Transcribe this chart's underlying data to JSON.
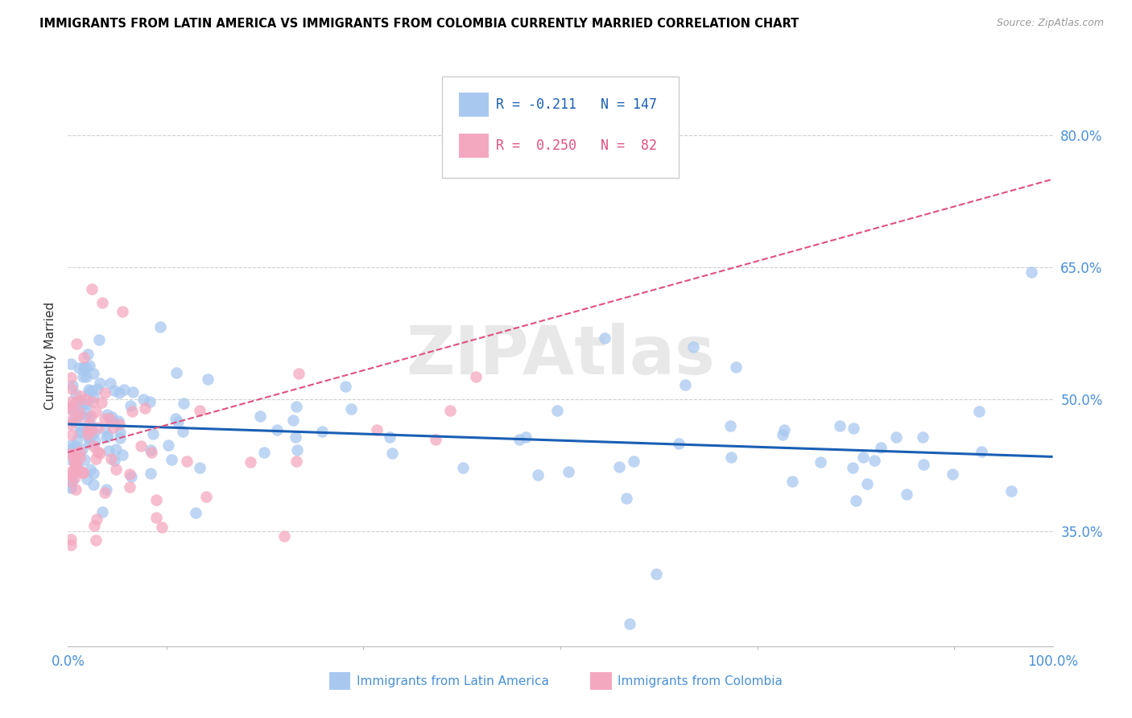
{
  "title": "IMMIGRANTS FROM LATIN AMERICA VS IMMIGRANTS FROM COLOMBIA CURRENTLY MARRIED CORRELATION CHART",
  "source": "Source: ZipAtlas.com",
  "ylabel": "Currently Married",
  "y_tick_labels": [
    "35.0%",
    "50.0%",
    "65.0%",
    "80.0%"
  ],
  "y_tick_values": [
    0.35,
    0.5,
    0.65,
    0.8
  ],
  "xlim": [
    0.0,
    1.0
  ],
  "ylim": [
    0.22,
    0.88
  ],
  "blue_line_y_start": 0.472,
  "blue_line_y_end": 0.435,
  "pink_line_y_start": 0.44,
  "pink_line_y_end": 0.75,
  "scatter_color_latin": "#a8c8f0",
  "scatter_color_colombia": "#f4a8c0",
  "line_color_blue": "#1a5fb4",
  "line_color_pink": "#e05080",
  "watermark": "ZIPAtlas",
  "title_fontsize": 10.5,
  "axis_label_color": "#4a90d9",
  "grid_color": "#d0d0d0",
  "legend_r1": "R = -0.211",
  "legend_n1": "N = 147",
  "legend_r2": "R =  0.250",
  "legend_n2": "N =  82",
  "bottom_legend_1": "Immigrants from Latin America",
  "bottom_legend_2": "Immigrants from Colombia"
}
